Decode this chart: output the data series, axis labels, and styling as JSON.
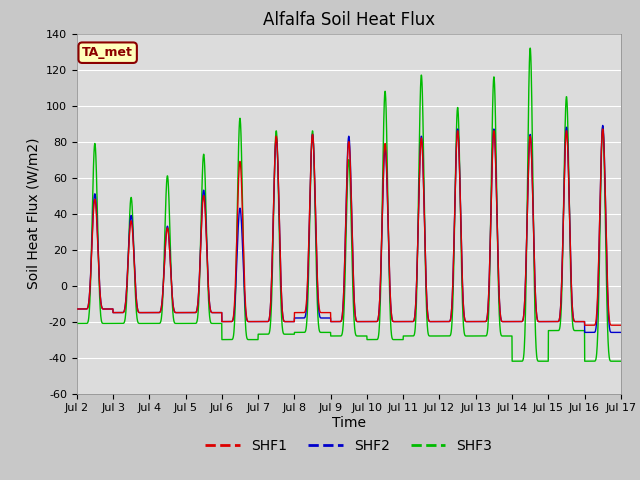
{
  "title": "Alfalfa Soil Heat Flux",
  "xlabel": "Time",
  "ylabel": "Soil Heat Flux (W/m2)",
  "ylim": [
    -60,
    140
  ],
  "yticks": [
    -60,
    -40,
    -20,
    0,
    20,
    40,
    60,
    80,
    100,
    120,
    140
  ],
  "x_tick_labels": [
    "Jul 2",
    "Jul 3",
    "Jul 4",
    "Jul 5",
    "Jul 6",
    "Jul 7",
    "Jul 8",
    "Jul 9",
    "Jul 10",
    "Jul 11",
    "Jul 12",
    "Jul 13",
    "Jul 14",
    "Jul 15",
    "Jul 16",
    "Jul 17"
  ],
  "colors": {
    "SHF1": "#dd0000",
    "SHF2": "#0000cc",
    "SHF3": "#00bb00"
  },
  "plot_bg_color": "#dcdcdc",
  "fig_bg_color": "#c8c8c8",
  "ta_met_label": "TA_met",
  "ta_met_bg": "#ffffbb",
  "ta_met_border": "#8b0000",
  "title_fontsize": 12,
  "axis_label_fontsize": 10,
  "tick_fontsize": 8,
  "line_width": 1.0,
  "n_days": 15,
  "pts_per_day": 200,
  "day_peaks_shf1": [
    48,
    36,
    32,
    50,
    69,
    83,
    84,
    80,
    79,
    82,
    86,
    86,
    83,
    86,
    87,
    87
  ],
  "day_peaks_shf2": [
    51,
    39,
    33,
    53,
    43,
    82,
    84,
    83,
    76,
    83,
    87,
    87,
    84,
    88,
    89,
    89
  ],
  "day_peaks_shf3": [
    79,
    49,
    61,
    73,
    93,
    86,
    86,
    70,
    108,
    117,
    99,
    116,
    132,
    105,
    88,
    88
  ],
  "day_troughs_shf1": [
    -13,
    -15,
    -15,
    -15,
    -20,
    -20,
    -15,
    -20,
    -20,
    -20,
    -20,
    -20,
    -20,
    -20,
    -22,
    -20
  ],
  "day_troughs_shf2": [
    -13,
    -15,
    -15,
    -15,
    -20,
    -20,
    -18,
    -20,
    -20,
    -20,
    -20,
    -20,
    -20,
    -20,
    -26,
    -20
  ],
  "day_troughs_shf3": [
    -21,
    -21,
    -21,
    -21,
    -30,
    -27,
    -26,
    -28,
    -30,
    -28,
    -28,
    -28,
    -42,
    -25,
    -42,
    -25
  ],
  "peak_sharpness": 4.0
}
